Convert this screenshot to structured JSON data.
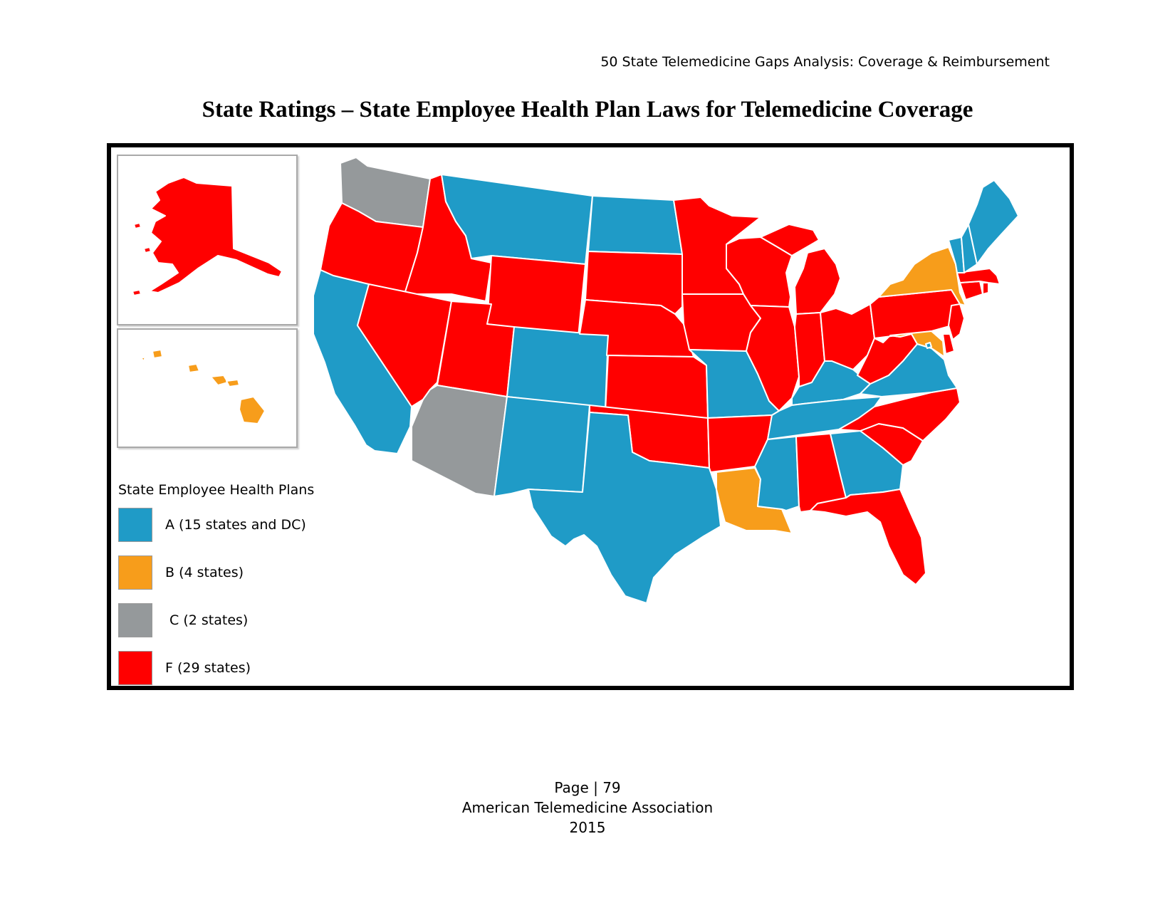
{
  "header": {
    "running_title": "50 State Telemedicine Gaps Analysis:  Coverage & Reimbursement"
  },
  "title": "State Ratings – State Employee Health Plan Laws for Telemedicine Coverage",
  "colors": {
    "A": "#1f9bc7",
    "B": "#f79d1b",
    "C": "#95999b",
    "F": "#ff0000"
  },
  "legend": {
    "title": "State Employee Health Plans",
    "items": [
      {
        "grade": "A",
        "label": "A (15 states and DC)"
      },
      {
        "grade": "B",
        "label": "B (4 states)"
      },
      {
        "grade": "C",
        "label": " C (2 states)"
      },
      {
        "grade": "F",
        "label": "F (29 states)"
      }
    ]
  },
  "ratings": {
    "AK": "F",
    "HI": "B",
    "WA": "C",
    "OR": "F",
    "CA": "A",
    "ID": "F",
    "NV": "F",
    "MT": "A",
    "WY": "F",
    "UT": "F",
    "AZ": "C",
    "CO": "A",
    "NM": "A",
    "ND": "A",
    "SD": "F",
    "NE": "F",
    "KS": "F",
    "OK": "F",
    "TX": "A",
    "MN": "F",
    "IA": "F",
    "MO": "A",
    "AR": "F",
    "LA": "B",
    "WI": "F",
    "IL": "F",
    "MS": "A",
    "MI": "F",
    "IN": "F",
    "KY": "A",
    "TN": "A",
    "AL": "F",
    "GA": "A",
    "FL": "F",
    "OH": "F",
    "WV": "F",
    "VA": "A",
    "NC": "F",
    "SC": "F",
    "PA": "F",
    "NY": "B",
    "MD": "B",
    "DE": "F",
    "NJ": "F",
    "CT": "F",
    "RI": "F",
    "MA": "F",
    "VT": "A",
    "NH": "A",
    "ME": "A",
    "DC": "A"
  },
  "footer": {
    "page": "Page | 79",
    "org": "American Telemedicine Association",
    "year": "2015"
  }
}
